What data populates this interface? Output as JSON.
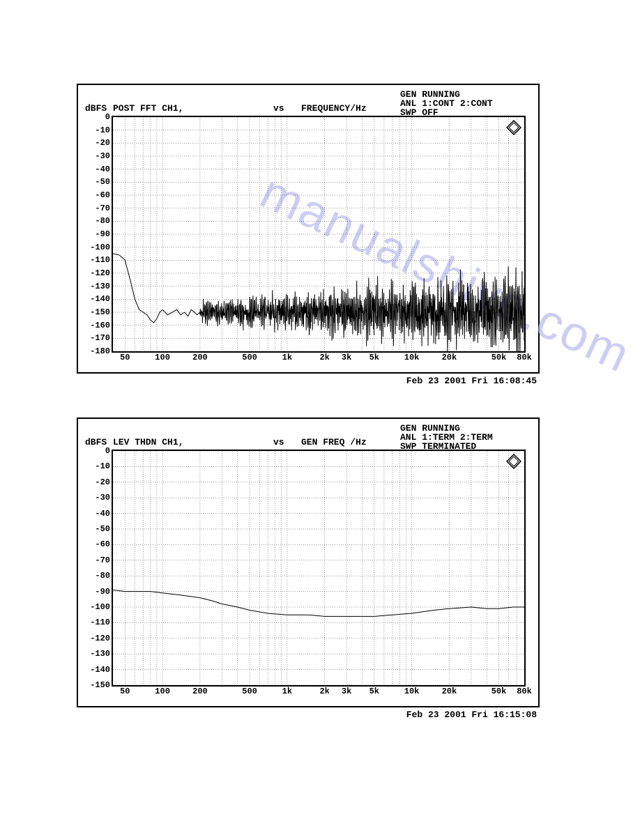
{
  "watermark": "manualshive.com",
  "colors": {
    "line": "#000000",
    "grid": "#333333",
    "bg": "#ffffff",
    "wm": "#b8b8f0"
  },
  "font_family": "Courier New",
  "chart1": {
    "type": "line-log-x",
    "y_unit": "dBFS",
    "header_left": "POST FFT CH1,",
    "header_mid1": "vs",
    "header_mid2": "FREQUENCY/Hz",
    "status1": "GEN RUNNING",
    "status2": "ANL 1:CONT 2:CONT",
    "status3": "SWP OFF",
    "timestamp": "Feb 23 2001 Fri 16:08:45",
    "xlim": [
      40,
      80000
    ],
    "ylim": [
      -180,
      0
    ],
    "yticks": [
      0,
      -10,
      -20,
      -30,
      -40,
      -50,
      -60,
      -70,
      -80,
      -90,
      -100,
      -110,
      -120,
      -130,
      -140,
      -150,
      -160,
      -170,
      -180
    ],
    "xticks": [
      {
        "v": 50,
        "l": "50"
      },
      {
        "v": 100,
        "l": "100"
      },
      {
        "v": 200,
        "l": "200"
      },
      {
        "v": 500,
        "l": "500"
      },
      {
        "v": 1000,
        "l": "1k"
      },
      {
        "v": 2000,
        "l": "2k"
      },
      {
        "v": 3000,
        "l": "3k"
      },
      {
        "v": 5000,
        "l": "5k"
      },
      {
        "v": 10000,
        "l": "10k"
      },
      {
        "v": 20000,
        "l": "20k"
      },
      {
        "v": 50000,
        "l": "50k"
      },
      {
        "v": 80000,
        "l": "80k"
      }
    ],
    "xgrid_minor": [
      60,
      70,
      80,
      90,
      300,
      400,
      600,
      700,
      800,
      900,
      4000,
      6000,
      7000,
      8000,
      9000,
      30000,
      40000,
      60000,
      70000
    ],
    "series": [
      {
        "x": 40,
        "y": -105
      },
      {
        "x": 45,
        "y": -106
      },
      {
        "x": 50,
        "y": -110
      },
      {
        "x": 55,
        "y": -125
      },
      {
        "x": 60,
        "y": -140
      },
      {
        "x": 65,
        "y": -148
      },
      {
        "x": 70,
        "y": -150
      },
      {
        "x": 75,
        "y": -152
      },
      {
        "x": 80,
        "y": -156
      },
      {
        "x": 85,
        "y": -158
      },
      {
        "x": 90,
        "y": -155
      },
      {
        "x": 95,
        "y": -150
      },
      {
        "x": 100,
        "y": -148
      },
      {
        "x": 110,
        "y": -152
      },
      {
        "x": 120,
        "y": -150
      },
      {
        "x": 130,
        "y": -148
      },
      {
        "x": 140,
        "y": -152
      },
      {
        "x": 150,
        "y": -150
      },
      {
        "x": 160,
        "y": -153
      },
      {
        "x": 170,
        "y": -148
      },
      {
        "x": 180,
        "y": -150
      },
      {
        "x": 190,
        "y": -152
      },
      {
        "x": 200,
        "y": -150
      }
    ],
    "noise_start_x": 200,
    "noise_base": -150,
    "noise_amp_start": 10,
    "noise_amp_end": 35,
    "line_width": 1
  },
  "chart2": {
    "type": "line-log-x",
    "y_unit": "dBFS",
    "header_left": "LEV THDN CH1,",
    "header_mid1": "vs",
    "header_mid2": "GEN FREQ /Hz",
    "status1": "GEN RUNNING",
    "status2": "ANL 1:TERM 2:TERM",
    "status3": "SWP TERMINATED",
    "timestamp": "Feb 23 2001 Fri 16:15:08",
    "xlim": [
      40,
      80000
    ],
    "ylim": [
      -150,
      0
    ],
    "yticks": [
      0,
      -10,
      -20,
      -30,
      -40,
      -50,
      -60,
      -70,
      -80,
      -90,
      -100,
      -110,
      -120,
      -130,
      -140,
      -150
    ],
    "xticks": [
      {
        "v": 50,
        "l": "50"
      },
      {
        "v": 100,
        "l": "100"
      },
      {
        "v": 200,
        "l": "200"
      },
      {
        "v": 500,
        "l": "500"
      },
      {
        "v": 1000,
        "l": "1k"
      },
      {
        "v": 2000,
        "l": "2k"
      },
      {
        "v": 3000,
        "l": "3k"
      },
      {
        "v": 5000,
        "l": "5k"
      },
      {
        "v": 10000,
        "l": "10k"
      },
      {
        "v": 20000,
        "l": "20k"
      },
      {
        "v": 50000,
        "l": "50k"
      },
      {
        "v": 80000,
        "l": "80k"
      }
    ],
    "xgrid_minor": [
      60,
      70,
      80,
      90,
      300,
      400,
      600,
      700,
      800,
      900,
      4000,
      6000,
      7000,
      8000,
      9000,
      30000,
      40000,
      60000,
      70000
    ],
    "series": [
      {
        "x": 40,
        "y": -89
      },
      {
        "x": 50,
        "y": -90
      },
      {
        "x": 60,
        "y": -90
      },
      {
        "x": 80,
        "y": -90
      },
      {
        "x": 100,
        "y": -91
      },
      {
        "x": 130,
        "y": -92
      },
      {
        "x": 160,
        "y": -93
      },
      {
        "x": 200,
        "y": -94
      },
      {
        "x": 250,
        "y": -96
      },
      {
        "x": 300,
        "y": -98
      },
      {
        "x": 400,
        "y": -100
      },
      {
        "x": 500,
        "y": -102
      },
      {
        "x": 700,
        "y": -104
      },
      {
        "x": 1000,
        "y": -105
      },
      {
        "x": 1500,
        "y": -105
      },
      {
        "x": 2000,
        "y": -106
      },
      {
        "x": 3000,
        "y": -106
      },
      {
        "x": 4000,
        "y": -106
      },
      {
        "x": 5000,
        "y": -106
      },
      {
        "x": 7000,
        "y": -105
      },
      {
        "x": 10000,
        "y": -104
      },
      {
        "x": 15000,
        "y": -102
      },
      {
        "x": 20000,
        "y": -101
      },
      {
        "x": 30000,
        "y": -100
      },
      {
        "x": 40000,
        "y": -101
      },
      {
        "x": 50000,
        "y": -101
      },
      {
        "x": 65000,
        "y": -100
      },
      {
        "x": 80000,
        "y": -100
      }
    ],
    "line_width": 1
  }
}
